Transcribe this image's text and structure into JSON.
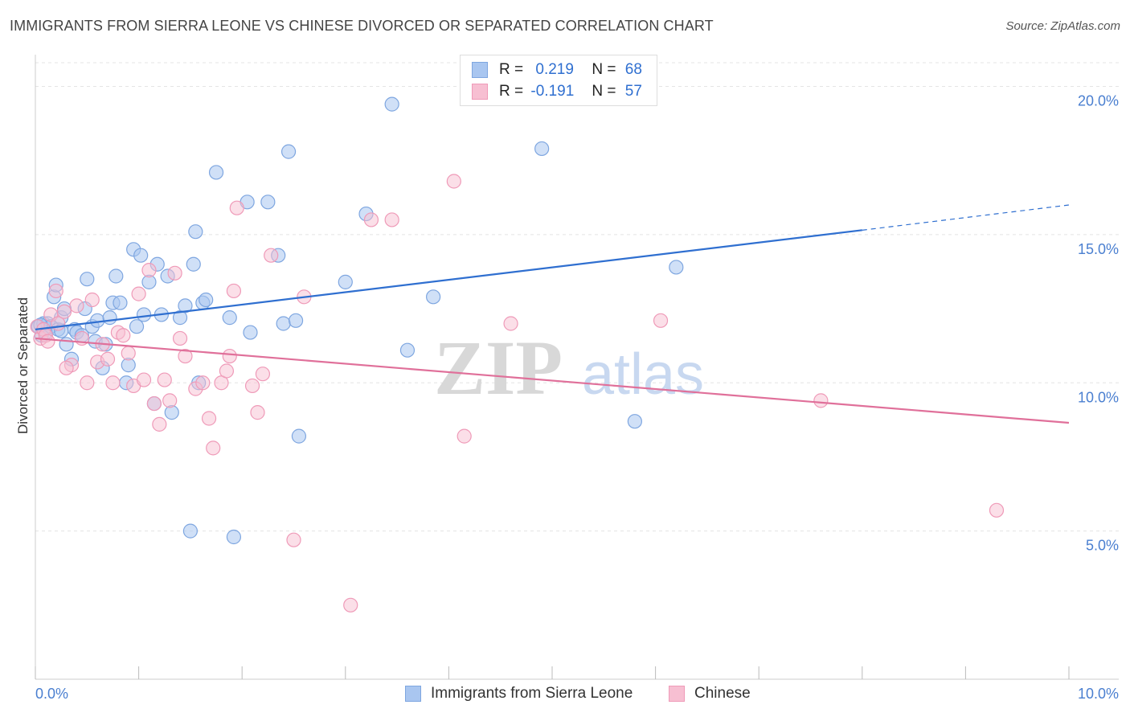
{
  "title": "IMMIGRANTS FROM SIERRA LEONE VS CHINESE DIVORCED OR SEPARATED CORRELATION CHART",
  "source": "Source: ZipAtlas.com",
  "watermark": {
    "zip": "ZIP",
    "atlas": "atlas"
  },
  "legend_stats": [
    {
      "r_label": "R =",
      "r_value": "0.219",
      "n_label": "N =",
      "n_value": "68"
    },
    {
      "r_label": "R =",
      "r_value": "-0.191",
      "n_label": "N =",
      "n_value": "57"
    }
  ],
  "bottom_legend": [
    "Immigrants from Sierra Leone",
    "Chinese"
  ],
  "colors": {
    "blue_fill": "#a9c6f0",
    "blue_stroke": "#7ea6e0",
    "blue_line": "#2f6fd0",
    "pink_fill": "#f7bfd2",
    "pink_stroke": "#ef9ab8",
    "pink_line": "#e0709a",
    "tick_text": "#4a7fd0",
    "grid": "#e4e4e4"
  },
  "chart_data": {
    "type": "scatter",
    "title": "IMMIGRANTS FROM SIERRA LEONE VS CHINESE DIVORCED OR SEPARATED CORRELATION CHART",
    "xlabel": "",
    "ylabel": "Divorced or Separated",
    "xlim": [
      0,
      10
    ],
    "ylim": [
      0,
      20.8
    ],
    "x_tick_labels": [
      "0.0%",
      "10.0%"
    ],
    "y_ticks": [
      5,
      10,
      15,
      20
    ],
    "y_tick_labels": [
      "5.0%",
      "10.0%",
      "15.0%",
      "20.0%"
    ],
    "grid": true,
    "legend_position": "top-center",
    "series": [
      {
        "name": "Immigrants from Sierra Leone",
        "color": "#a9c6f0",
        "trend": {
          "x": [
            0.0,
            8.0
          ],
          "y": [
            11.8,
            15.15
          ],
          "dashed_extension": {
            "x": [
              8.0,
              10.0
            ],
            "y": [
              15.15,
              16.0
            ]
          }
        },
        "points": [
          [
            0.03,
            11.9
          ],
          [
            0.06,
            11.6
          ],
          [
            0.08,
            12.0
          ],
          [
            0.1,
            11.7
          ],
          [
            0.12,
            12.0
          ],
          [
            0.15,
            11.9
          ],
          [
            0.18,
            12.9
          ],
          [
            0.2,
            13.3
          ],
          [
            0.22,
            11.8
          ],
          [
            0.25,
            12.2
          ],
          [
            0.28,
            12.5
          ],
          [
            0.3,
            11.3
          ],
          [
            0.35,
            10.8
          ],
          [
            0.38,
            11.8
          ],
          [
            0.4,
            11.7
          ],
          [
            0.45,
            11.6
          ],
          [
            0.48,
            12.5
          ],
          [
            0.5,
            13.5
          ],
          [
            0.55,
            11.9
          ],
          [
            0.58,
            11.4
          ],
          [
            0.6,
            12.1
          ],
          [
            0.65,
            10.5
          ],
          [
            0.68,
            11.3
          ],
          [
            0.72,
            12.2
          ],
          [
            0.75,
            12.7
          ],
          [
            0.78,
            13.6
          ],
          [
            0.82,
            12.7
          ],
          [
            0.88,
            10.0
          ],
          [
            0.9,
            10.6
          ],
          [
            0.95,
            14.5
          ],
          [
            0.98,
            11.9
          ],
          [
            1.02,
            14.3
          ],
          [
            1.05,
            12.3
          ],
          [
            1.1,
            13.4
          ],
          [
            1.15,
            9.3
          ],
          [
            1.18,
            14.0
          ],
          [
            1.22,
            12.3
          ],
          [
            1.28,
            13.6
          ],
          [
            1.32,
            9.0
          ],
          [
            1.4,
            12.2
          ],
          [
            1.45,
            12.6
          ],
          [
            1.5,
            5.0
          ],
          [
            1.53,
            14.0
          ],
          [
            1.55,
            15.1
          ],
          [
            1.58,
            10.0
          ],
          [
            1.62,
            12.7
          ],
          [
            1.65,
            12.8
          ],
          [
            1.75,
            17.1
          ],
          [
            1.88,
            12.2
          ],
          [
            1.92,
            4.8
          ],
          [
            2.05,
            16.1
          ],
          [
            2.08,
            11.7
          ],
          [
            2.25,
            16.1
          ],
          [
            2.35,
            14.3
          ],
          [
            2.4,
            12.0
          ],
          [
            2.45,
            17.8
          ],
          [
            2.52,
            12.1
          ],
          [
            2.55,
            8.2
          ],
          [
            3.0,
            13.4
          ],
          [
            3.2,
            15.7
          ],
          [
            3.45,
            19.4
          ],
          [
            3.6,
            11.1
          ],
          [
            3.85,
            12.9
          ],
          [
            4.9,
            17.9
          ],
          [
            5.8,
            8.7
          ],
          [
            6.2,
            13.9
          ],
          [
            0.05,
            11.95
          ],
          [
            0.25,
            11.75
          ]
        ]
      },
      {
        "name": "Chinese",
        "color": "#f7bfd2",
        "trend": {
          "x": [
            0.0,
            10.0
          ],
          "y": [
            11.5,
            8.65
          ]
        },
        "points": [
          [
            0.02,
            11.9
          ],
          [
            0.05,
            11.5
          ],
          [
            0.08,
            11.8
          ],
          [
            0.1,
            11.6
          ],
          [
            0.15,
            12.3
          ],
          [
            0.2,
            13.1
          ],
          [
            0.22,
            12.0
          ],
          [
            0.28,
            12.4
          ],
          [
            0.35,
            10.6
          ],
          [
            0.4,
            12.6
          ],
          [
            0.45,
            11.5
          ],
          [
            0.55,
            12.8
          ],
          [
            0.6,
            10.7
          ],
          [
            0.65,
            11.3
          ],
          [
            0.7,
            10.8
          ],
          [
            0.75,
            10.0
          ],
          [
            0.8,
            11.7
          ],
          [
            0.85,
            11.6
          ],
          [
            0.9,
            11.0
          ],
          [
            0.95,
            9.9
          ],
          [
            1.0,
            13.0
          ],
          [
            1.05,
            10.1
          ],
          [
            1.1,
            13.8
          ],
          [
            1.15,
            9.3
          ],
          [
            1.2,
            8.6
          ],
          [
            1.25,
            10.1
          ],
          [
            1.3,
            9.4
          ],
          [
            1.35,
            13.7
          ],
          [
            1.4,
            11.5
          ],
          [
            1.45,
            10.9
          ],
          [
            1.55,
            9.8
          ],
          [
            1.62,
            10.0
          ],
          [
            1.68,
            8.8
          ],
          [
            1.72,
            7.8
          ],
          [
            1.8,
            10.0
          ],
          [
            1.85,
            10.4
          ],
          [
            1.88,
            10.9
          ],
          [
            1.92,
            13.1
          ],
          [
            1.95,
            15.9
          ],
          [
            2.1,
            9.9
          ],
          [
            2.15,
            9.0
          ],
          [
            2.2,
            10.3
          ],
          [
            2.28,
            14.3
          ],
          [
            2.5,
            4.7
          ],
          [
            2.6,
            12.9
          ],
          [
            3.05,
            2.5
          ],
          [
            3.25,
            15.5
          ],
          [
            3.45,
            15.5
          ],
          [
            4.05,
            16.8
          ],
          [
            4.15,
            8.2
          ],
          [
            4.6,
            12.0
          ],
          [
            6.05,
            12.1
          ],
          [
            7.6,
            9.4
          ],
          [
            9.3,
            5.7
          ],
          [
            0.12,
            11.4
          ],
          [
            0.3,
            10.5
          ],
          [
            0.5,
            10.0
          ]
        ]
      }
    ]
  }
}
